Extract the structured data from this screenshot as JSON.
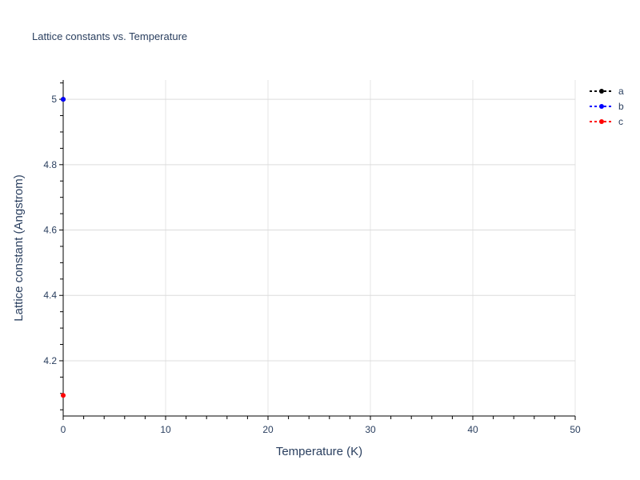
{
  "chart_data": {
    "type": "scatter",
    "mode": "lines+markers",
    "title": "Lattice constants vs. Temperature",
    "xlabel": "Temperature (K)",
    "ylabel": "Lattice constant (Angstrom)",
    "xlim": [
      0,
      50
    ],
    "ylim": [
      4.031,
      5.059
    ],
    "xticks": [
      0,
      10,
      20,
      30,
      40,
      50
    ],
    "xtick_labels": [
      "0",
      "10",
      "20",
      "30",
      "40",
      "50"
    ],
    "yticks": [
      4.2,
      4.4,
      4.6,
      4.8,
      5
    ],
    "ytick_labels": [
      "4.2",
      "4.4",
      "4.6",
      "4.8",
      "5"
    ],
    "x_minor_step": 2,
    "y_minor_step": 0.05,
    "grid": true,
    "legend_position": "top-right",
    "series": [
      {
        "name": "a",
        "color": "#000000",
        "x": [
          0
        ],
        "y": [
          5.0
        ]
      },
      {
        "name": "b",
        "color": "#0000ff",
        "x": [
          0
        ],
        "y": [
          5.0
        ]
      },
      {
        "name": "c",
        "color": "#ff0000",
        "x": [
          0
        ],
        "y": [
          4.094
        ]
      }
    ]
  }
}
